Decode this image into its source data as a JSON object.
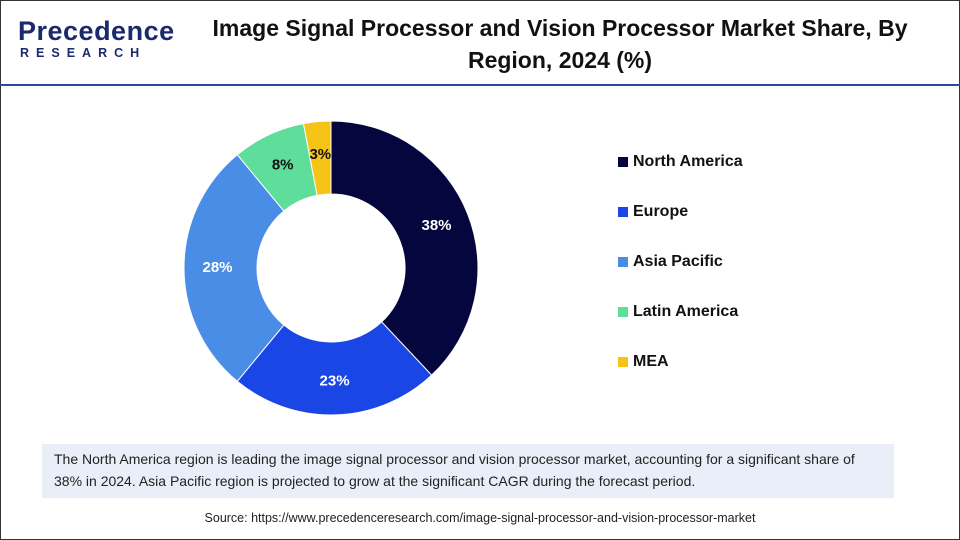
{
  "logo": {
    "name": "Precedence",
    "tagline": "RESEARCH"
  },
  "chart_data": {
    "type": "pie",
    "title": "Image Signal Processor and Vision Processor Market Share, By Region, 2024 (%)",
    "categories": [
      "North America",
      "Europe",
      "Asia Pacific",
      "Latin America",
      "MEA"
    ],
    "values": [
      38,
      23,
      28,
      8,
      3
    ],
    "value_labels": [
      "38%",
      "23%",
      "28%",
      "8%",
      "3%"
    ],
    "colors": [
      "#06063f",
      "#1a46e6",
      "#4a8de6",
      "#5fdd9a",
      "#f6c417"
    ],
    "donut": true,
    "legend": "right"
  },
  "description": "The North America region is leading the image signal processor and vision processor market, accounting for a significant share of 38% in 2024. Asia Pacific region is projected to grow at the significant CAGR during the forecast period.",
  "source": "Source: https://www.precedenceresearch.com/image-signal-processor-and-vision-processor-market"
}
